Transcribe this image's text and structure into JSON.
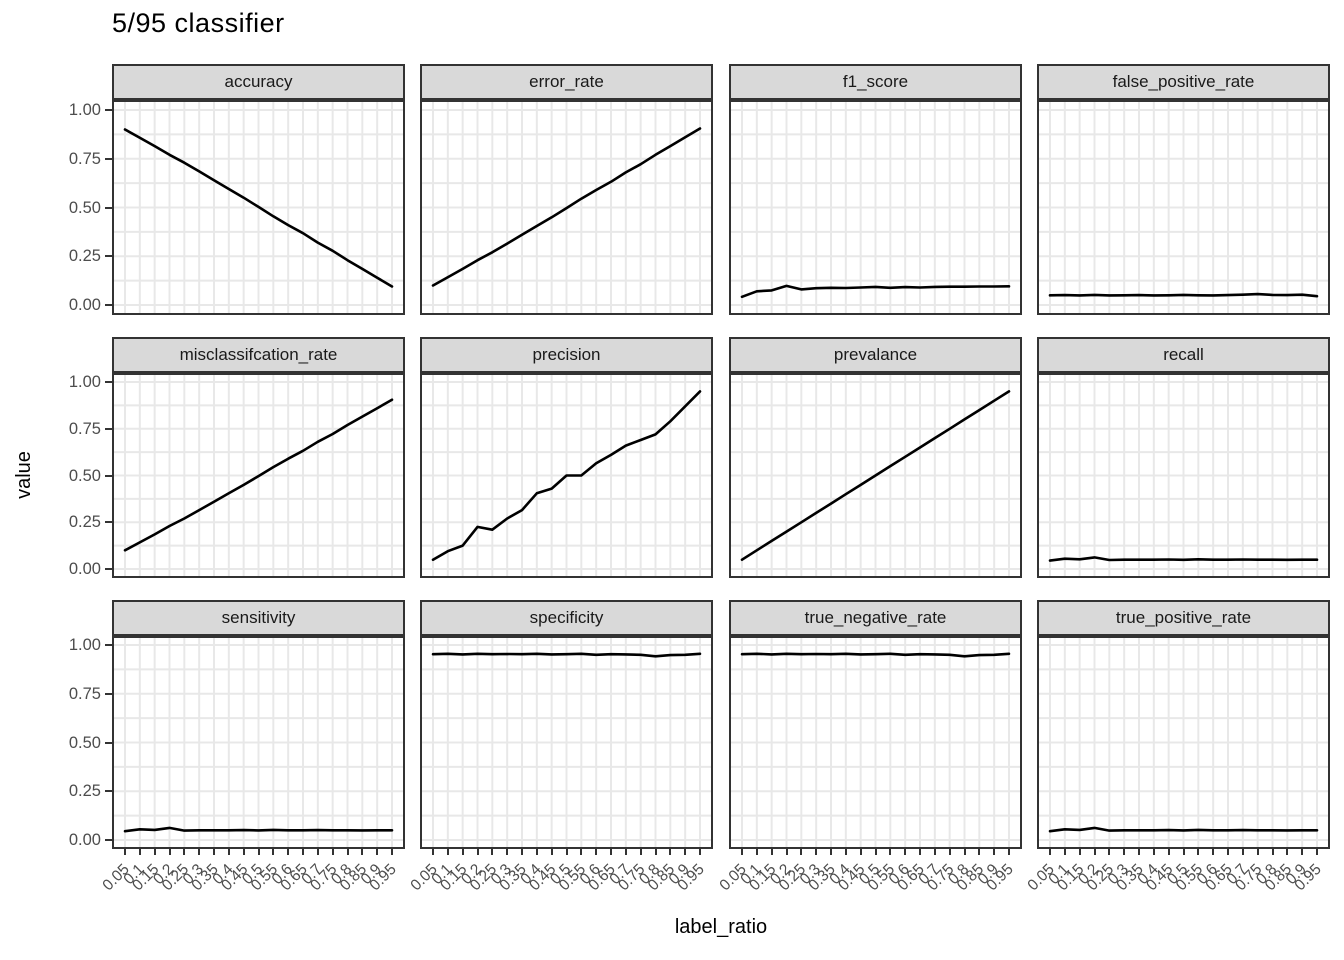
{
  "title": "5/95 classifier",
  "axes": {
    "x_title": "label_ratio",
    "y_title": "value",
    "y_tick_labels": [
      "1.00",
      "0.75",
      "0.50",
      "0.25",
      "0.00"
    ],
    "x_tick_labels": [
      "0.05",
      "0.1",
      "0.15",
      "0.2",
      "0.25",
      "0.3",
      "0.35",
      "0.4",
      "0.45",
      "0.5",
      "0.55",
      "0.6",
      "0.65",
      "0.7",
      "0.75",
      "0.8",
      "0.85",
      "0.9",
      "0.95"
    ]
  },
  "colors": {
    "line": "#000000",
    "strip_fill": "#D9D9D9",
    "strip_border": "#333333",
    "panel_border": "#333333",
    "grid": "#E8E8E8",
    "tick_text": "#4D4D4D",
    "axis_title_text": "#000000",
    "background": "#FFFFFF"
  },
  "chart_data": {
    "type": "line",
    "title": "5/95 classifier",
    "xlabel": "label_ratio",
    "ylabel": "value",
    "legend": "none",
    "layout": "facet grid 3 rows x 4 cols, shared axes",
    "grid": "vertical gridlines at every 0.05, horizontal gridlines at every 0.125",
    "xlim": [
      0.05,
      0.95
    ],
    "ylim": [
      0.0,
      1.0
    ],
    "y_major_ticks": [
      1.0,
      0.75,
      0.5,
      0.25,
      0.0
    ],
    "x": [
      0.05,
      0.1,
      0.15,
      0.2,
      0.25,
      0.3,
      0.35,
      0.4,
      0.45,
      0.5,
      0.55,
      0.6,
      0.65,
      0.7,
      0.75,
      0.8,
      0.85,
      0.9,
      0.95
    ],
    "facets": [
      {
        "label": "accuracy",
        "values": [
          0.9,
          0.858,
          0.815,
          0.77,
          0.73,
          0.685,
          0.64,
          0.595,
          0.55,
          0.503,
          0.455,
          0.41,
          0.368,
          0.32,
          0.278,
          0.23,
          0.185,
          0.14,
          0.095
        ]
      },
      {
        "label": "error_rate",
        "values": [
          0.1,
          0.142,
          0.185,
          0.23,
          0.27,
          0.315,
          0.36,
          0.405,
          0.45,
          0.497,
          0.545,
          0.59,
          0.632,
          0.68,
          0.722,
          0.77,
          0.815,
          0.86,
          0.905
        ]
      },
      {
        "label": "f1_score",
        "values": [
          0.042,
          0.07,
          0.075,
          0.098,
          0.08,
          0.086,
          0.088,
          0.087,
          0.09,
          0.093,
          0.088,
          0.092,
          0.09,
          0.093,
          0.094,
          0.094,
          0.095,
          0.095,
          0.096
        ]
      },
      {
        "label": "false_positive_rate",
        "values": [
          0.05,
          0.051,
          0.049,
          0.052,
          0.049,
          0.05,
          0.051,
          0.049,
          0.05,
          0.052,
          0.05,
          0.049,
          0.051,
          0.053,
          0.056,
          0.052,
          0.051,
          0.053,
          0.045
        ]
      },
      {
        "label": "misclassifcation_rate",
        "values": [
          0.1,
          0.142,
          0.185,
          0.23,
          0.27,
          0.315,
          0.36,
          0.405,
          0.45,
          0.497,
          0.545,
          0.59,
          0.632,
          0.68,
          0.722,
          0.77,
          0.815,
          0.86,
          0.905
        ]
      },
      {
        "label": "precision",
        "values": [
          0.05,
          0.095,
          0.125,
          0.225,
          0.21,
          0.27,
          0.315,
          0.405,
          0.43,
          0.5,
          0.5,
          0.565,
          0.61,
          0.66,
          0.69,
          0.72,
          0.79,
          0.87,
          0.95
        ]
      },
      {
        "label": "prevalance",
        "values": [
          0.05,
          0.1,
          0.15,
          0.2,
          0.25,
          0.3,
          0.35,
          0.4,
          0.45,
          0.5,
          0.55,
          0.6,
          0.65,
          0.7,
          0.75,
          0.8,
          0.85,
          0.9,
          0.95
        ]
      },
      {
        "label": "recall",
        "values": [
          0.045,
          0.055,
          0.052,
          0.062,
          0.048,
          0.05,
          0.05,
          0.05,
          0.051,
          0.049,
          0.052,
          0.05,
          0.05,
          0.051,
          0.05,
          0.05,
          0.049,
          0.05,
          0.05
        ]
      },
      {
        "label": "sensitivity",
        "values": [
          0.045,
          0.055,
          0.052,
          0.062,
          0.048,
          0.05,
          0.05,
          0.05,
          0.051,
          0.049,
          0.052,
          0.05,
          0.05,
          0.051,
          0.05,
          0.05,
          0.049,
          0.05,
          0.05
        ]
      },
      {
        "label": "specificity",
        "values": [
          0.953,
          0.955,
          0.952,
          0.955,
          0.953,
          0.954,
          0.953,
          0.955,
          0.952,
          0.953,
          0.955,
          0.95,
          0.953,
          0.952,
          0.95,
          0.942,
          0.948,
          0.95,
          0.955
        ]
      },
      {
        "label": "true_negative_rate",
        "values": [
          0.953,
          0.955,
          0.952,
          0.955,
          0.953,
          0.954,
          0.953,
          0.955,
          0.952,
          0.953,
          0.955,
          0.95,
          0.953,
          0.952,
          0.95,
          0.942,
          0.948,
          0.95,
          0.955
        ]
      },
      {
        "label": "true_positive_rate",
        "values": [
          0.045,
          0.055,
          0.052,
          0.062,
          0.048,
          0.05,
          0.05,
          0.05,
          0.051,
          0.049,
          0.052,
          0.05,
          0.05,
          0.051,
          0.05,
          0.05,
          0.049,
          0.05,
          0.05
        ]
      }
    ]
  }
}
